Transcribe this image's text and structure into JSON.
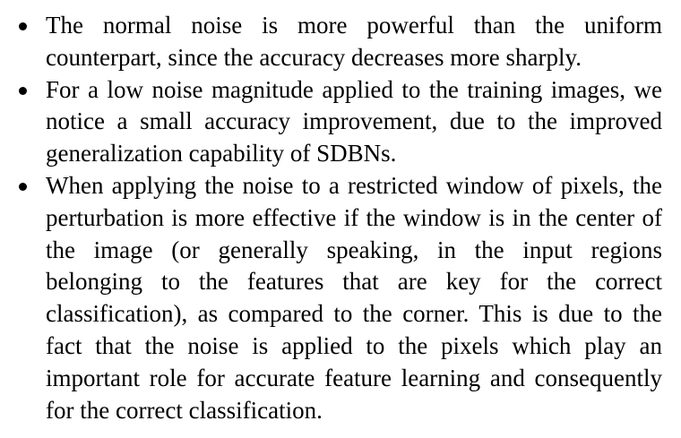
{
  "bullets": [
    {
      "text": "The normal noise is more powerful than the uniform counterpart, since the accuracy decreases more sharply."
    },
    {
      "text": "For a low noise magnitude applied to the training images, we notice a small accuracy improvement, due to the improved generalization capability of SDBNs."
    },
    {
      "text": "When applying the noise to a restricted window of pixels, the perturbation is more effective if the window is in the center of the image (or generally speaking, in the input regions belonging to the features that are key for the correct classification), as compared to the corner. This is due to the fact that the noise is applied to the pixels which play an important role for accurate feature learning and consequently for the correct classification."
    }
  ]
}
